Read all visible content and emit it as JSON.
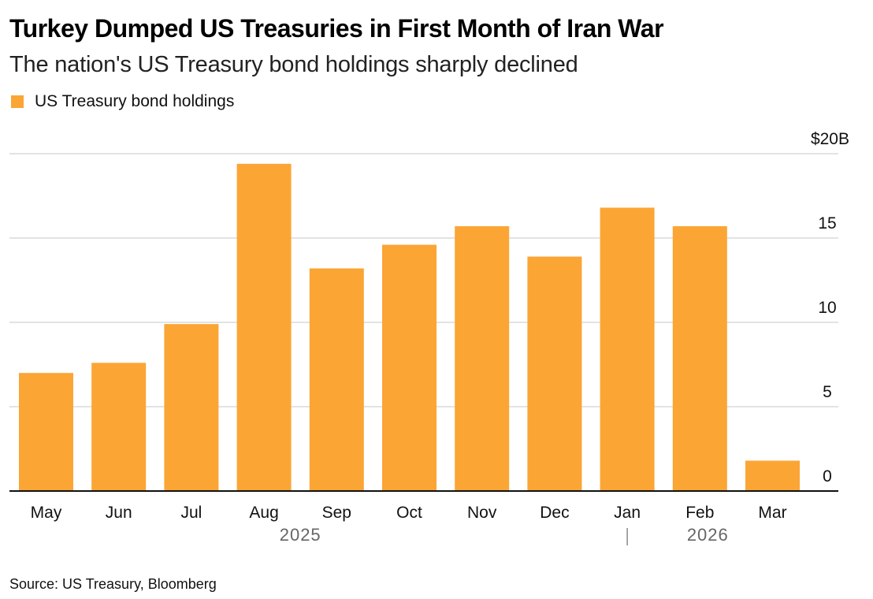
{
  "title": "Turkey Dumped US Treasuries in First Month of Iran War",
  "subtitle": "The nation's US Treasury bond holdings sharply declined",
  "legend": {
    "label": "US Treasury bond holdings",
    "color": "#FBA535"
  },
  "source": "Source: US Treasury, Bloomberg",
  "chart_data": {
    "type": "bar",
    "categories": [
      "May",
      "Jun",
      "Jul",
      "Aug",
      "Sep",
      "Oct",
      "Nov",
      "Dec",
      "Jan",
      "Feb",
      "Mar"
    ],
    "series": [
      {
        "name": "US Treasury bond holdings",
        "values": [
          7.0,
          7.6,
          9.9,
          19.4,
          13.2,
          14.6,
          15.7,
          13.9,
          16.8,
          15.7,
          1.8
        ]
      }
    ],
    "year_labels": [
      {
        "label": "2025",
        "categories": [
          "May",
          "Jun",
          "Jul",
          "Aug",
          "Sep",
          "Oct",
          "Nov",
          "Dec"
        ]
      },
      {
        "label": "2026",
        "categories": [
          "Jan",
          "Feb",
          "Mar"
        ]
      }
    ],
    "ylim": [
      0,
      20
    ],
    "yticks": [
      {
        "value": 20,
        "label": "$20B"
      },
      {
        "value": 15,
        "label": "15"
      },
      {
        "value": 10,
        "label": "10"
      },
      {
        "value": 5,
        "label": "5"
      },
      {
        "value": 0,
        "label": "0"
      }
    ],
    "y_axis_side": "right",
    "grid": true,
    "bar_color": "#FBA535"
  }
}
